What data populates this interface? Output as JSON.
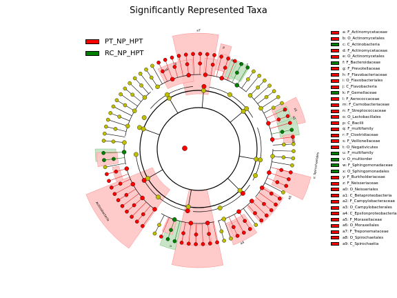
{
  "chart_data": {
    "type": "cladogram",
    "title": "Significantly Represented Taxa",
    "groups": [
      {
        "name": "PT_NP_HPT",
        "color": "#ff0000"
      },
      {
        "name": "RC_NP_HPT",
        "color": "#008000"
      }
    ],
    "taxa": [
      {
        "key": "a",
        "name": "F_Actinomycetaceae",
        "group": 0
      },
      {
        "key": "b",
        "name": "O_Actinomycetales",
        "group": 0
      },
      {
        "key": "c",
        "name": "C_Actinobacteria",
        "group": 1
      },
      {
        "key": "d",
        "name": "F_Actinomycetaceae",
        "group": 0
      },
      {
        "key": "e",
        "name": "O_Actinomycetales",
        "group": 0
      },
      {
        "key": "f",
        "name": "F_Bacteroidaceae",
        "group": 1
      },
      {
        "key": "g",
        "name": "F_Prevotellaceae",
        "group": 0
      },
      {
        "key": "h",
        "name": "F_Flavobacteriaceae",
        "group": 0
      },
      {
        "key": "i",
        "name": "O_Flavobacteriales",
        "group": 0
      },
      {
        "key": "j",
        "name": "C_Flavobacteria",
        "group": 0
      },
      {
        "key": "k",
        "name": "F_Gemellaceae",
        "group": 1
      },
      {
        "key": "l",
        "name": "F_Aerococcaceae",
        "group": 0
      },
      {
        "key": "m",
        "name": "F_Carnobacteriaceae",
        "group": 0
      },
      {
        "key": "n",
        "name": "F_Streptococcaceae",
        "group": 0
      },
      {
        "key": "o",
        "name": "O_Lactobacillales",
        "group": 0
      },
      {
        "key": "p",
        "name": "C_Bacilli",
        "group": 0
      },
      {
        "key": "q",
        "name": "F_multifamily",
        "group": 0
      },
      {
        "key": "r",
        "name": "F_Clostridiaceae",
        "group": 0
      },
      {
        "key": "s",
        "name": "F_Veillonellaceae",
        "group": 0
      },
      {
        "key": "t",
        "name": "O_Negativicutes",
        "group": 0
      },
      {
        "key": "u",
        "name": "F_multifamily",
        "group": 1
      },
      {
        "key": "v",
        "name": "O_multiorder",
        "group": 1
      },
      {
        "key": "w",
        "name": "F_Sphingomonadaceae",
        "group": 1
      },
      {
        "key": "x",
        "name": "O_Sphingomonadales",
        "group": 1
      },
      {
        "key": "y",
        "name": "F_Burkholderiaceae",
        "group": 0
      },
      {
        "key": "z",
        "name": "F_Neisseriaceae",
        "group": 0
      },
      {
        "key": "a0",
        "name": "O_Neisseriales",
        "group": 0
      },
      {
        "key": "a1",
        "name": "C_Betaproteobacteria",
        "group": 0
      },
      {
        "key": "a2",
        "name": "F_Campylobacteraceae",
        "group": 0
      },
      {
        "key": "a3",
        "name": "O_Campylobacterales",
        "group": 0
      },
      {
        "key": "a4",
        "name": "C_Epsilonproteobacteria",
        "group": 0
      },
      {
        "key": "a5",
        "name": "F_Moraxellaceae",
        "group": 0
      },
      {
        "key": "a6",
        "name": "O_Moraxellales",
        "group": 0
      },
      {
        "key": "a7",
        "name": "F_Treponemataceae",
        "group": 0
      },
      {
        "key": "a8",
        "name": "O_Spirochaetales",
        "group": 0
      },
      {
        "key": "a9",
        "name": "C_Spirochaetia",
        "group": 0
      }
    ],
    "sector_labels": [
      {
        "text": "a7",
        "group": 0
      },
      {
        "text": "b",
        "group": 0
      },
      {
        "text": "p",
        "group": 0
      },
      {
        "text": "b",
        "group": 0
      },
      {
        "text": "a6",
        "group": 0
      },
      {
        "text": "s",
        "group": 0
      },
      {
        "text": "x",
        "group": 1
      },
      {
        "text": "a1",
        "group": 0
      },
      {
        "text": "o: Spirochaetales",
        "group": 0
      },
      {
        "text": "a9",
        "group": 0
      },
      {
        "text": "a1",
        "group": 0
      },
      {
        "text": "k",
        "group": 1
      },
      {
        "text": "a6",
        "group": 0
      },
      {
        "text": "Actinobacteria",
        "group": 0
      },
      {
        "text": "a4",
        "group": 0
      },
      {
        "text": "u",
        "group": 1
      }
    ]
  }
}
